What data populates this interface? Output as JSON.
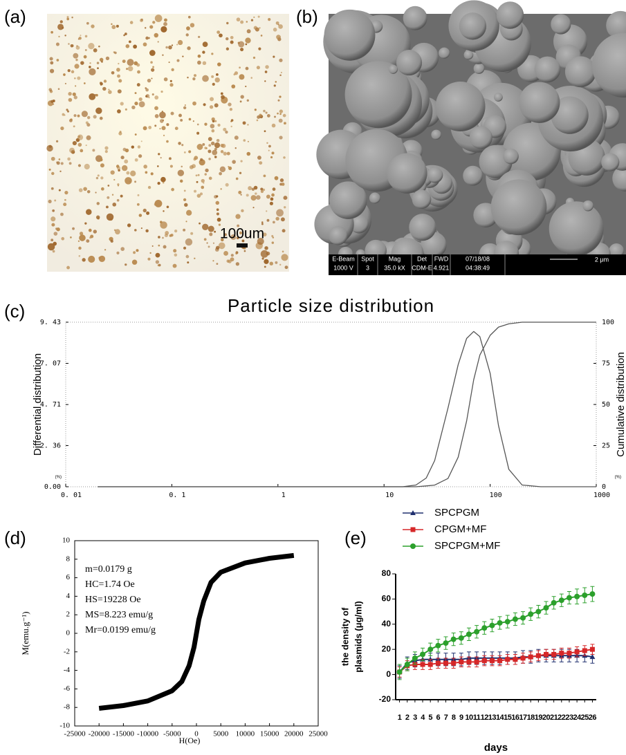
{
  "panels": [
    {
      "label": "(a)",
      "scale_bar": "100um"
    },
    {
      "label": "(b)",
      "info_bar": [
        [
          "E-Beam",
          "1000 V"
        ],
        [
          "Spot",
          "3"
        ],
        [
          "Mag",
          "35.0 kX"
        ],
        [
          "Det",
          "CDM-E"
        ],
        [
          "FWD",
          "4.921"
        ],
        [
          "07/18/08",
          "04:38:49"
        ]
      ],
      "scale_bar": "2 μm"
    }
  ],
  "chart_data": [
    {
      "type": "line",
      "panel_label": "(c)",
      "title": "Particle size distribution",
      "ylabel": "Differential distribution",
      "y2label": "Cumulative distribution",
      "unit_label": "(%)",
      "xscale": "log",
      "x": [
        0.02,
        1,
        15,
        20,
        25,
        30,
        40,
        50,
        60,
        70,
        80,
        100,
        120,
        150,
        200,
        300,
        1000
      ],
      "xlim": [
        0.01,
        1000
      ],
      "xticks": [
        {
          "value": 0.01,
          "label": "0. 01"
        },
        {
          "value": 0.1,
          "label": "0. 1"
        },
        1,
        10,
        100,
        1000
      ],
      "ylim": [
        0,
        9.43
      ],
      "yticks": [
        {
          "value": 0,
          "label": "0.00"
        },
        {
          "value": 2.36,
          "label": "2. 36"
        },
        {
          "value": 4.71,
          "label": "4. 71"
        },
        {
          "value": 7.07,
          "label": "7. 07"
        },
        {
          "value": 9.43,
          "label": "9. 43"
        }
      ],
      "y2lim": [
        0,
        100
      ],
      "y2ticks": [
        0,
        25,
        50,
        75,
        100
      ],
      "series": [
        {
          "color": "#555555",
          "values": [
            0,
            0,
            0,
            0.1,
            0.5,
            1.5,
            4.5,
            7.0,
            8.5,
            8.9,
            8.6,
            6.5,
            3.5,
            1.0,
            0.1,
            0,
            0
          ]
        },
        {
          "color": "#555555",
          "axis": "y2",
          "values": [
            0,
            0,
            0,
            0,
            0.5,
            1,
            5,
            18,
            40,
            65,
            80,
            92,
            97,
            99,
            100,
            100,
            100
          ]
        }
      ]
    },
    {
      "type": "line",
      "panel_label": "(d)",
      "xlabel": "H(Oe)",
      "ylabel": "M(emu.g⁻¹)",
      "annotations": [
        "m=0.0179 g",
        "HC=1.74  Oe",
        "HS=19228  Oe",
        "MS=8.223  emu/g",
        "Mr=0.0199  emu/g"
      ],
      "x": [
        -20000,
        -15000,
        -10000,
        -5000,
        -3000,
        -1500,
        -500,
        0,
        500,
        1500,
        3000,
        5000,
        10000,
        15000,
        20000
      ],
      "xlim": [
        -25000,
        25000
      ],
      "xticks": [
        -25000,
        -20000,
        -15000,
        -10000,
        -5000,
        0,
        5000,
        10000,
        15000,
        20000,
        25000
      ],
      "ylim": [
        -10,
        10
      ],
      "yticks": [
        -10,
        -8,
        -6,
        -4,
        -2,
        0,
        2,
        4,
        6,
        8,
        10
      ],
      "series": [
        {
          "color": "#000000",
          "values": [
            -8.1,
            -7.8,
            -7.3,
            -6.2,
            -5.2,
            -3.5,
            -1.5,
            0,
            1.5,
            3.5,
            5.5,
            6.6,
            7.6,
            8.1,
            8.4
          ]
        }
      ]
    },
    {
      "type": "line",
      "panel_label": "(e)",
      "xlabel": "days",
      "ylabel": [
        "the density of",
        "plasmids (μg/ml)"
      ],
      "legend": "upper left",
      "x": [
        1,
        2,
        3,
        4,
        5,
        6,
        7,
        8,
        9,
        10,
        11,
        12,
        13,
        14,
        15,
        16,
        17,
        18,
        19,
        20,
        21,
        22,
        23,
        24,
        25,
        26
      ],
      "xlim": [
        0.5,
        26.5
      ],
      "ylim": [
        -20,
        80
      ],
      "yticks": [
        -20,
        0,
        20,
        40,
        60,
        80
      ],
      "series": [
        {
          "name": "SPCPGM",
          "color": "#1f2f6e",
          "marker": "triangle",
          "values": [
            2,
            9,
            11,
            12,
            12,
            12,
            12,
            12,
            12,
            13,
            13,
            13,
            13,
            13,
            13,
            13,
            14,
            14,
            15,
            15,
            15,
            15,
            15,
            15,
            15,
            14
          ],
          "errors": [
            5,
            5,
            5,
            5,
            5,
            5,
            5,
            5,
            5,
            5,
            5,
            5,
            5,
            5,
            5,
            5,
            5,
            5,
            5,
            5,
            5,
            5,
            5,
            5,
            5,
            5
          ]
        },
        {
          "name": "CPGM+MF",
          "color": "#d62728",
          "marker": "square",
          "values": [
            2,
            7,
            8,
            8,
            8,
            9,
            9,
            9,
            10,
            10,
            10,
            11,
            11,
            11,
            12,
            12,
            13,
            14,
            15,
            16,
            16,
            17,
            17,
            18,
            19,
            20
          ],
          "errors": [
            4,
            4,
            4,
            4,
            4,
            4,
            4,
            4,
            4,
            4,
            4,
            4,
            4,
            4,
            4,
            4,
            4,
            4,
            4,
            4,
            4,
            4,
            4,
            4,
            4,
            4
          ]
        },
        {
          "name": "SPCPGM+MF",
          "color": "#2ca02c",
          "marker": "circle",
          "values": [
            2,
            8,
            13,
            16,
            20,
            23,
            25,
            28,
            29,
            32,
            34,
            37,
            39,
            41,
            42,
            44,
            45,
            48,
            50,
            53,
            57,
            59,
            61,
            62,
            63,
            64
          ],
          "errors": [
            6,
            5,
            5,
            5,
            5,
            5,
            5,
            5,
            5,
            5,
            5,
            5,
            5,
            5,
            5,
            5,
            5,
            5,
            5,
            5,
            5,
            5,
            5,
            6,
            6,
            6
          ]
        }
      ]
    }
  ]
}
